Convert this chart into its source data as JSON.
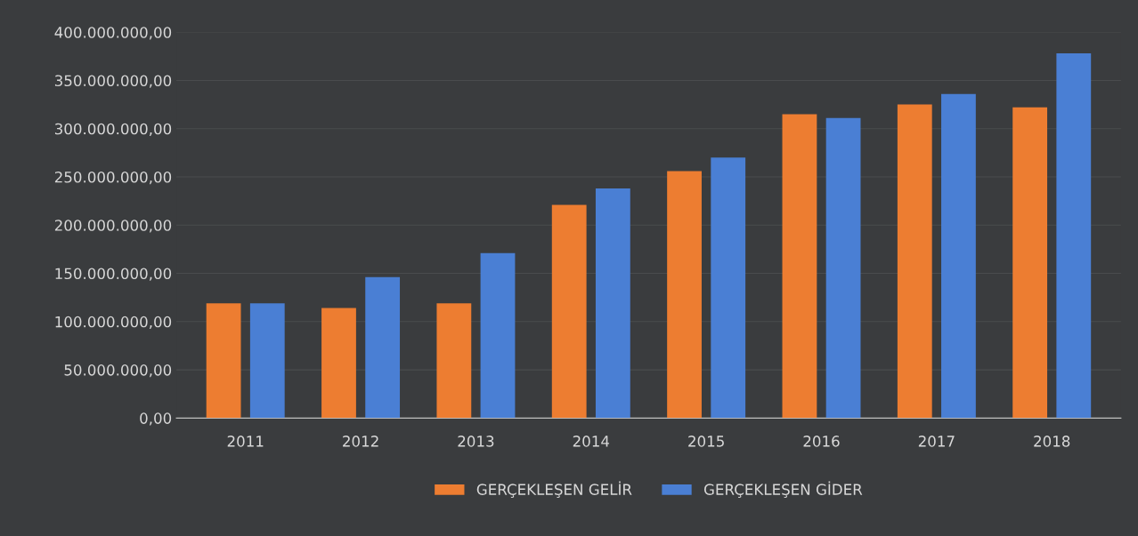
{
  "chart_data": {
    "type": "bar",
    "categories": [
      "2011",
      "2012",
      "2013",
      "2014",
      "2015",
      "2016",
      "2017",
      "2018"
    ],
    "series": [
      {
        "name": "GERÇEKLEŞEN GELİR",
        "color": "#ed7d31",
        "values": [
          119000000,
          114000000,
          119000000,
          221000000,
          256000000,
          315000000,
          325000000,
          322000000
        ]
      },
      {
        "name": "GERÇEKLEŞEN GİDER",
        "color": "#4a7fd4",
        "values": [
          119000000,
          146000000,
          171000000,
          238000000,
          270000000,
          311000000,
          336000000,
          378000000
        ]
      }
    ],
    "ylim": [
      0,
      400000000
    ],
    "yticks": [
      {
        "value": 0,
        "label": "0,00"
      },
      {
        "value": 50000000,
        "label": "50.000.000,00"
      },
      {
        "value": 100000000,
        "label": "100.000.000,00"
      },
      {
        "value": 150000000,
        "label": "150.000.000,00"
      },
      {
        "value": 200000000,
        "label": "200.000.000,00"
      },
      {
        "value": 250000000,
        "label": "250.000.000,00"
      },
      {
        "value": 300000000,
        "label": "300.000.000,00"
      },
      {
        "value": 350000000,
        "label": "350.000.000,00"
      },
      {
        "value": 400000000,
        "label": "400.000.000,00"
      }
    ],
    "grid": "y",
    "legend": "bottom"
  }
}
